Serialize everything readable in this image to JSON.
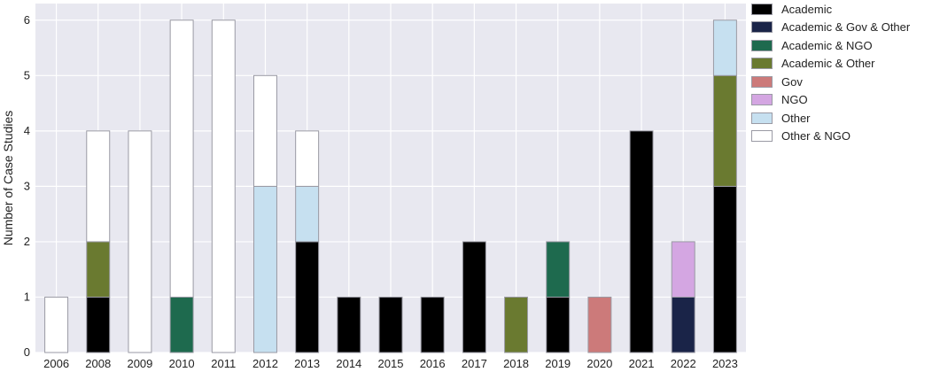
{
  "chart_data": {
    "type": "bar",
    "stacked": true,
    "title": "",
    "xlabel": "",
    "ylabel": "Number of Case Studies",
    "ylim": [
      0,
      6.3
    ],
    "yticks": [
      0,
      1,
      2,
      3,
      4,
      5,
      6
    ],
    "grid": true,
    "legend_position": "outside-right",
    "categories": [
      "2006",
      "2008",
      "2009",
      "2010",
      "2011",
      "2012",
      "2013",
      "2014",
      "2015",
      "2016",
      "2017",
      "2018",
      "2019",
      "2020",
      "2021",
      "2022",
      "2023"
    ],
    "series": [
      {
        "name": "Academic",
        "color": "#000000",
        "values": [
          0,
          1,
          0,
          0,
          0,
          0,
          2,
          1,
          1,
          1,
          2,
          0,
          1,
          0,
          4,
          0,
          3
        ]
      },
      {
        "name": "Academic & Gov & Other",
        "color": "#1a2448",
        "values": [
          0,
          0,
          0,
          0,
          0,
          0,
          0,
          0,
          0,
          0,
          0,
          0,
          0,
          0,
          0,
          1,
          0
        ]
      },
      {
        "name": "Academic & NGO",
        "color": "#1e6a4e",
        "values": [
          0,
          0,
          0,
          1,
          0,
          0,
          0,
          0,
          0,
          0,
          0,
          0,
          1,
          0,
          0,
          0,
          0
        ]
      },
      {
        "name": "Academic & Other",
        "color": "#6a7a30",
        "values": [
          0,
          1,
          0,
          0,
          0,
          0,
          0,
          0,
          0,
          0,
          0,
          1,
          0,
          0,
          0,
          0,
          2
        ]
      },
      {
        "name": "Gov",
        "color": "#cc7a7a",
        "values": [
          0,
          0,
          0,
          0,
          0,
          0,
          0,
          0,
          0,
          0,
          0,
          0,
          0,
          1,
          0,
          0,
          0
        ]
      },
      {
        "name": "NGO",
        "color": "#d4a6e2",
        "values": [
          0,
          0,
          0,
          0,
          0,
          0,
          0,
          0,
          0,
          0,
          0,
          0,
          0,
          0,
          0,
          1,
          0
        ]
      },
      {
        "name": "Other",
        "color": "#c6e0f0",
        "values": [
          0,
          0,
          0,
          0,
          0,
          3,
          1,
          0,
          0,
          0,
          0,
          0,
          0,
          0,
          0,
          0,
          1
        ]
      },
      {
        "name": "Other & NGO",
        "color": "#ffffff",
        "values": [
          1,
          2,
          4,
          5,
          6,
          2,
          1,
          0,
          0,
          0,
          0,
          0,
          0,
          0,
          0,
          0,
          0
        ]
      }
    ]
  },
  "style": {
    "plot_background": "#e8e8f0",
    "grid_color": "#ffffff",
    "bar_edge": "#9a9aa4"
  }
}
